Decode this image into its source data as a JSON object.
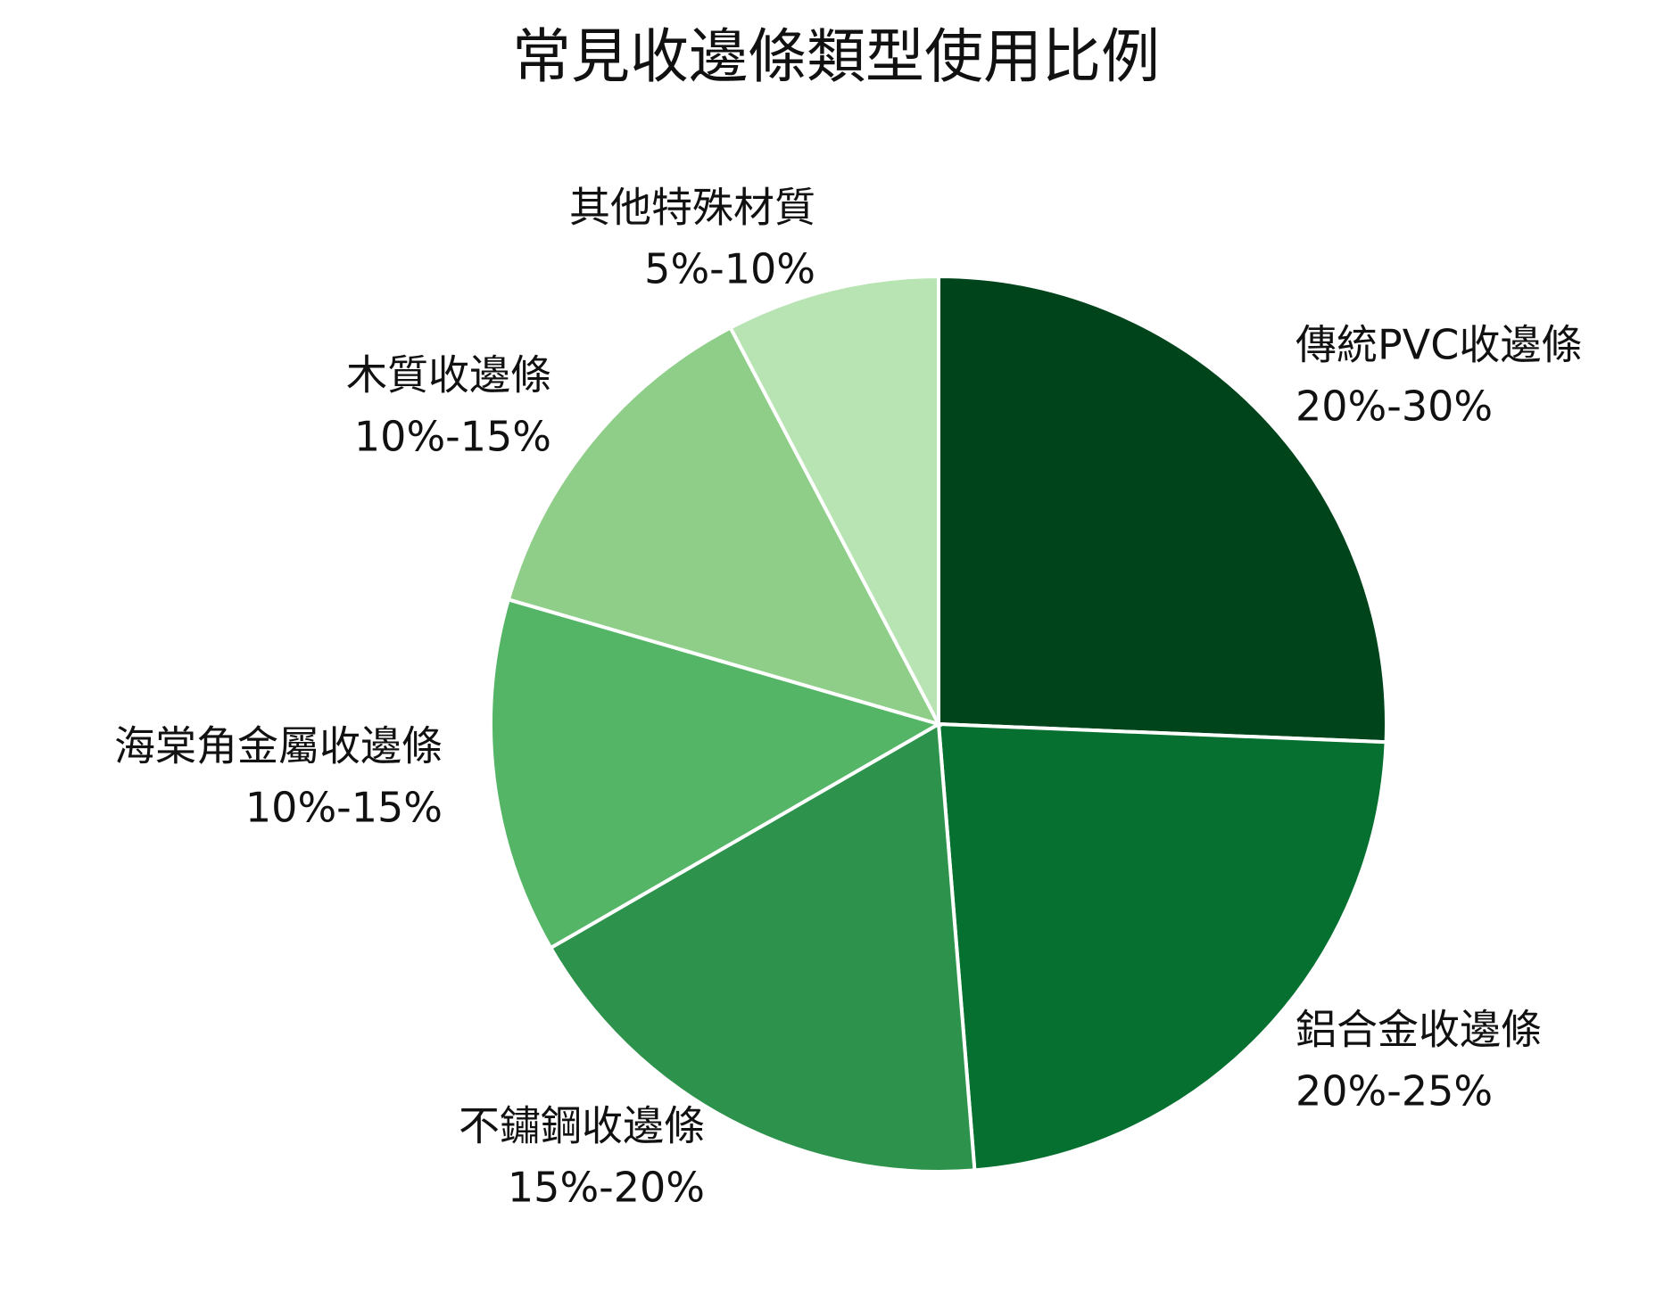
{
  "chart_data": {
    "type": "pie",
    "title": "常見收邊條類型使用比例",
    "categories": [
      "傳統PVC收邊條",
      "鋁合金收邊條",
      "不鏽鋼收邊條",
      "海棠角金屬收邊條",
      "木質收邊條",
      "其他特殊材質"
    ],
    "values": [
      25,
      22.5,
      17.5,
      12.5,
      12.5,
      7.5
    ],
    "value_labels": [
      "20%-30%",
      "20%-25%",
      "15%-20%",
      "10%-15%",
      "10%-15%",
      "5%-10%"
    ],
    "colors": [
      "#00441b",
      "#067030",
      "#2d924b",
      "#55b567",
      "#8ece88",
      "#b8e3b2"
    ]
  }
}
